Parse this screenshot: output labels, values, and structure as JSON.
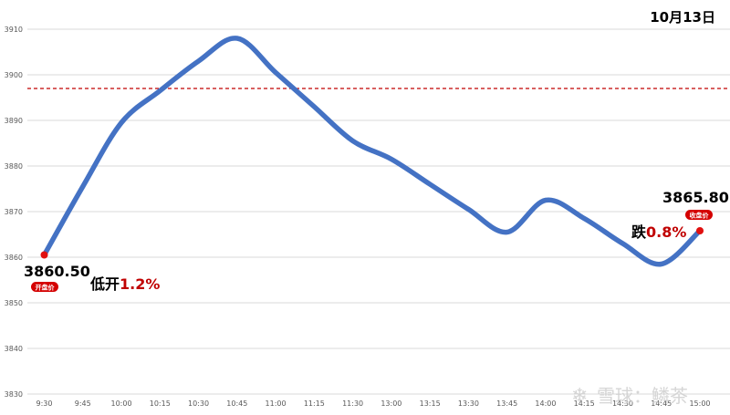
{
  "chart_data": {
    "type": "line",
    "date_label": "10月13日",
    "x": [
      "9:30",
      "9:45",
      "10:00",
      "10:15",
      "10:30",
      "10:45",
      "11:00",
      "11:15",
      "11:30",
      "13:00",
      "13:15",
      "13:30",
      "13:45",
      "14:00",
      "14:15",
      "14:30",
      "14:45",
      "15:00"
    ],
    "series": [
      {
        "values": [
          3860.5,
          3875.5,
          3889.5,
          3896.5,
          3903.0,
          3908.0,
          3900.5,
          3893.0,
          3885.5,
          3881.5,
          3876.0,
          3870.5,
          3865.5,
          3872.5,
          3868.5,
          3863.0,
          3858.5,
          3865.8
        ]
      }
    ],
    "y_ticks": [
      3830,
      3840,
      3850,
      3860,
      3870,
      3880,
      3890,
      3900,
      3910
    ],
    "ylim": [
      3830,
      3913
    ],
    "reference_line": 3897,
    "line_color": "#4472c4",
    "reference_color": "#c00000",
    "marker_color": "#e01010",
    "open": {
      "value_text": "3860.50",
      "badge": "开盘价",
      "note_prefix": "低开",
      "note_pct": "1.2%"
    },
    "close": {
      "value_text": "3865.80",
      "badge": "收盘价",
      "note_prefix": "跌",
      "note_pct": "0.8%"
    },
    "grid": true
  },
  "watermark": {
    "text": "雪球：鳞茶"
  }
}
